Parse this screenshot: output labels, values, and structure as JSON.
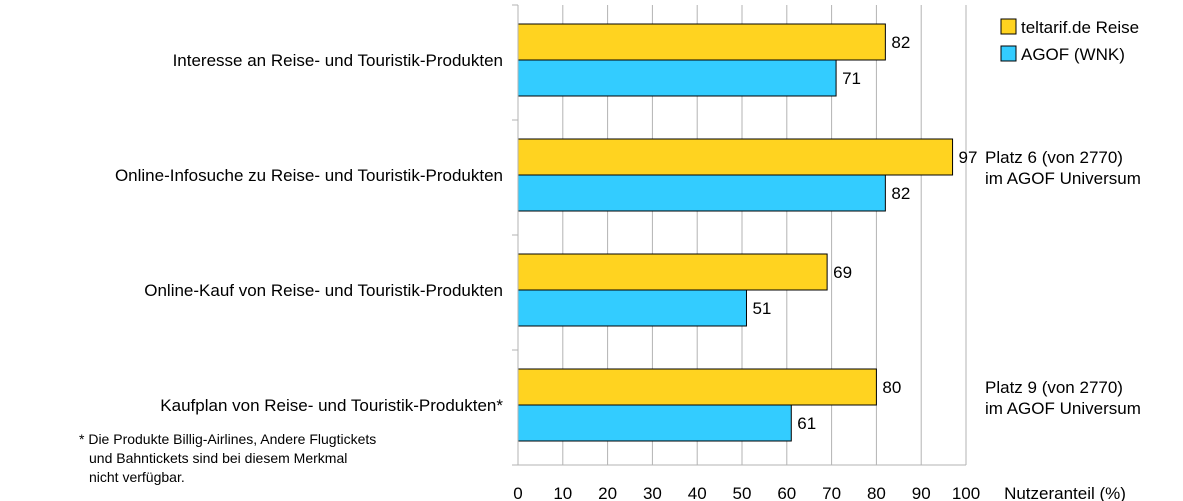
{
  "chart_data": {
    "type": "bar",
    "orientation": "horizontal",
    "categories": [
      "Interesse an Reise- und Touristik-Produkten",
      "Online-Infosuche zu Reise- und Touristik-Produkten",
      "Online-Kauf von Reise- und Touristik-Produkten",
      "Kaufplan von Reise- und Touristik-Produkten*"
    ],
    "series": [
      {
        "name": "teltarif.de Reise",
        "color": "#ffd320",
        "values": [
          82,
          97,
          69,
          80
        ]
      },
      {
        "name": "AGOF (WNK)",
        "color": "#33ccff",
        "values": [
          71,
          82,
          51,
          61
        ]
      }
    ],
    "xlabel": "Nutzeranteil (%)",
    "xlim": [
      0,
      100
    ],
    "xticks": [
      "0",
      "10",
      "20",
      "30",
      "40",
      "50",
      "60",
      "70",
      "80",
      "90",
      "100"
    ],
    "grid": true,
    "legend_position": "top-right",
    "notes": [
      {
        "category_index": 1,
        "lines": [
          "Platz 6 (von 2770)",
          "im AGOF Universum"
        ]
      },
      {
        "category_index": 3,
        "lines": [
          "Platz 9 (von 2770)",
          "im AGOF Universum"
        ]
      }
    ],
    "footnote": [
      "* Die Produkte Billig-Airlines, Andere Flugtickets",
      "und Bahntickets sind bei diesem Merkmal",
      "nicht verfügbar."
    ]
  }
}
